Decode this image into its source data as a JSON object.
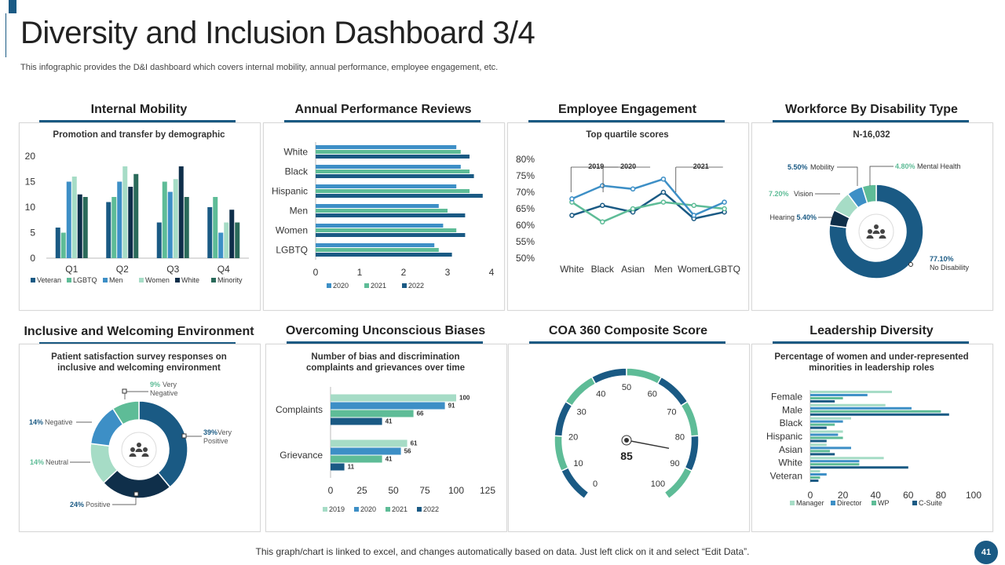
{
  "header": {
    "title": "Diversity and Inclusion Dashboard 3/4",
    "subtitle": "This infographic provides the D&I dashboard which covers internal mobility, annual performance, employee engagement, etc."
  },
  "colors": {
    "dark": "#1a5a84",
    "mid": "#3d8fc6",
    "green": "#5ebc97",
    "light": "#a6dcc6",
    "navy": "#1a3c5a",
    "deep": "#0f2f4a",
    "teal": "#2a6a5a"
  },
  "sections": {
    "internal_mobility": "Internal Mobility",
    "annual_performance": "Annual Performance Reviews",
    "employee_engagement": "Employee Engagement",
    "workforce_disability": "Workforce By Disability  Type",
    "inclusive_env": "Inclusive and Welcoming Environment",
    "unconscious_biases": "Overcoming Unconscious Biases",
    "coa360": "COA 360 Composite Score",
    "leadership": "Leadership Diversity"
  },
  "chart_data": [
    {
      "id": "internal_mobility",
      "type": "bar",
      "title": "Promotion and transfer by demographic",
      "categories": [
        "Q1",
        "Q2",
        "Q3",
        "Q4"
      ],
      "ylim": [
        0,
        20
      ],
      "yticks": [
        "0",
        "5",
        "10",
        "15",
        "20"
      ],
      "series": [
        {
          "name": "Veteran",
          "color": "#1a5a84",
          "values": [
            6,
            11,
            7,
            10
          ]
        },
        {
          "name": "LGBTQ",
          "color": "#5ebc97",
          "values": [
            5,
            12,
            15,
            12
          ]
        },
        {
          "name": "Men",
          "color": "#3d8fc6",
          "values": [
            15,
            15,
            13,
            5
          ]
        },
        {
          "name": "Women",
          "color": "#a6dcc6",
          "values": [
            16,
            18,
            15.5,
            7
          ]
        },
        {
          "name": "White",
          "color": "#0f2f4a",
          "values": [
            12.5,
            14,
            18,
            9.5
          ]
        },
        {
          "name": "Minority",
          "color": "#2a6a5a",
          "values": [
            12,
            16.5,
            12,
            7
          ]
        }
      ]
    },
    {
      "id": "annual_performance",
      "type": "bar",
      "categories": [
        "White",
        "Black",
        "Hispanic",
        "Men",
        "Women",
        "LGBTQ"
      ],
      "xlim": [
        0,
        4
      ],
      "xticks": [
        "0",
        "1",
        "2",
        "3",
        "4"
      ],
      "series": [
        {
          "name": "2020",
          "color": "#3d8fc6",
          "values": [
            3.2,
            3.3,
            3.2,
            2.8,
            2.9,
            2.7
          ]
        },
        {
          "name": "2021",
          "color": "#5ebc97",
          "values": [
            3.3,
            3.5,
            3.5,
            3.0,
            3.2,
            2.8
          ]
        },
        {
          "name": "2022",
          "color": "#1a5a84",
          "values": [
            3.5,
            3.6,
            3.8,
            3.4,
            3.4,
            3.1
          ]
        }
      ]
    },
    {
      "id": "employee_engagement",
      "type": "line",
      "title": "Top quartile scores",
      "categories": [
        "White",
        "Black",
        "Asian",
        "Men",
        "Women",
        "LGBTQ"
      ],
      "ylim": [
        50,
        80
      ],
      "yticks": [
        "50%",
        "55%",
        "60%",
        "65%",
        "70%",
        "75%",
        "80%"
      ],
      "annotations": [
        "2019",
        "2020",
        "2021"
      ],
      "series": [
        {
          "name": "2019",
          "color": "#1a5a84",
          "values": [
            63,
            66,
            64,
            70,
            62,
            64
          ]
        },
        {
          "name": "2020",
          "color": "#5ebc97",
          "values": [
            67,
            61,
            65,
            67,
            66,
            65
          ]
        },
        {
          "name": "2021",
          "color": "#3d8fc6",
          "values": [
            68,
            72,
            71,
            74,
            63,
            67
          ]
        }
      ]
    },
    {
      "id": "workforce_disability",
      "type": "pie",
      "title": "N-16,032",
      "slices": [
        {
          "label": "No Disability",
          "value": 77.1,
          "pct": "77.10%",
          "color": "#1a5a84"
        },
        {
          "label": "Hearing",
          "value": 5.4,
          "pct": "5.40%",
          "color": "#0f2f4a"
        },
        {
          "label": "Vision",
          "value": 7.2,
          "pct": "7.20%",
          "color": "#a6dcc6"
        },
        {
          "label": "Mobility",
          "value": 5.5,
          "pct": "5.50%",
          "color": "#3d8fc6"
        },
        {
          "label": "Mental Health",
          "value": 4.8,
          "pct": "4.80%",
          "color": "#5ebc97"
        }
      ]
    },
    {
      "id": "inclusive_env",
      "type": "pie",
      "title": "Patient satisfaction survey responses on inclusive and welcoming environment",
      "slices": [
        {
          "label": "Very Positive",
          "value": 39,
          "pct": "39%",
          "color": "#1a5a84"
        },
        {
          "label": "Positive",
          "value": 24,
          "pct": "24%",
          "color": "#0f2f4a"
        },
        {
          "label": "Neutral",
          "value": 14,
          "pct": "14%",
          "color": "#a6dcc6"
        },
        {
          "label": "Negative",
          "value": 14,
          "pct": "14%",
          "color": "#3d8fc6"
        },
        {
          "label": "Very Negative",
          "value": 9,
          "pct": "9%",
          "color": "#5ebc97"
        }
      ]
    },
    {
      "id": "unconscious_biases",
      "type": "bar",
      "title": "Number of bias and discrimination complaints and grievances over time",
      "categories": [
        "Complaints",
        "Grievance"
      ],
      "xlim": [
        0,
        125
      ],
      "xticks": [
        "0",
        "25",
        "50",
        "75",
        "100",
        "125"
      ],
      "series": [
        {
          "name": "2019",
          "color": "#a6dcc6",
          "values": [
            100,
            61
          ]
        },
        {
          "name": "2020",
          "color": "#3d8fc6",
          "values": [
            91,
            56
          ]
        },
        {
          "name": "2021",
          "color": "#5ebc97",
          "values": [
            66,
            41
          ]
        },
        {
          "name": "2022",
          "color": "#1a5a84",
          "values": [
            41,
            11
          ]
        }
      ]
    },
    {
      "id": "coa360",
      "type": "gauge",
      "value": 85,
      "value_label": "85",
      "range": [
        0,
        100
      ],
      "ticks": [
        "0",
        "10",
        "20",
        "30",
        "40",
        "50",
        "60",
        "70",
        "80",
        "90",
        "100"
      ]
    },
    {
      "id": "leadership",
      "type": "bar",
      "title": "Percentage of women and under-represented minorities in leadership roles",
      "categories": [
        "Female",
        "Male",
        "Black",
        "Hispanic",
        "Asian",
        "White",
        "Veteran"
      ],
      "xlim": [
        0,
        100
      ],
      "xticks": [
        "0",
        "20",
        "40",
        "60",
        "80",
        "100"
      ],
      "series": [
        {
          "name": "Manager",
          "color": "#a6dcc6",
          "values": [
            50,
            46,
            25,
            20,
            10,
            45,
            6
          ]
        },
        {
          "name": "Director",
          "color": "#3d8fc6",
          "values": [
            35,
            62,
            20,
            17,
            25,
            30,
            10
          ]
        },
        {
          "name": "WP",
          "color": "#5ebc97",
          "values": [
            20,
            80,
            15,
            20,
            12,
            30,
            6
          ]
        },
        {
          "name": "C-Suite",
          "color": "#1a5a84",
          "values": [
            15,
            85,
            10,
            10,
            15,
            60,
            5
          ]
        }
      ]
    }
  ],
  "footer": {
    "note": "This graph/chart is linked to excel,  and changes automatically based on data. Just left click on it and select “Edit Data”.",
    "page": "41"
  }
}
